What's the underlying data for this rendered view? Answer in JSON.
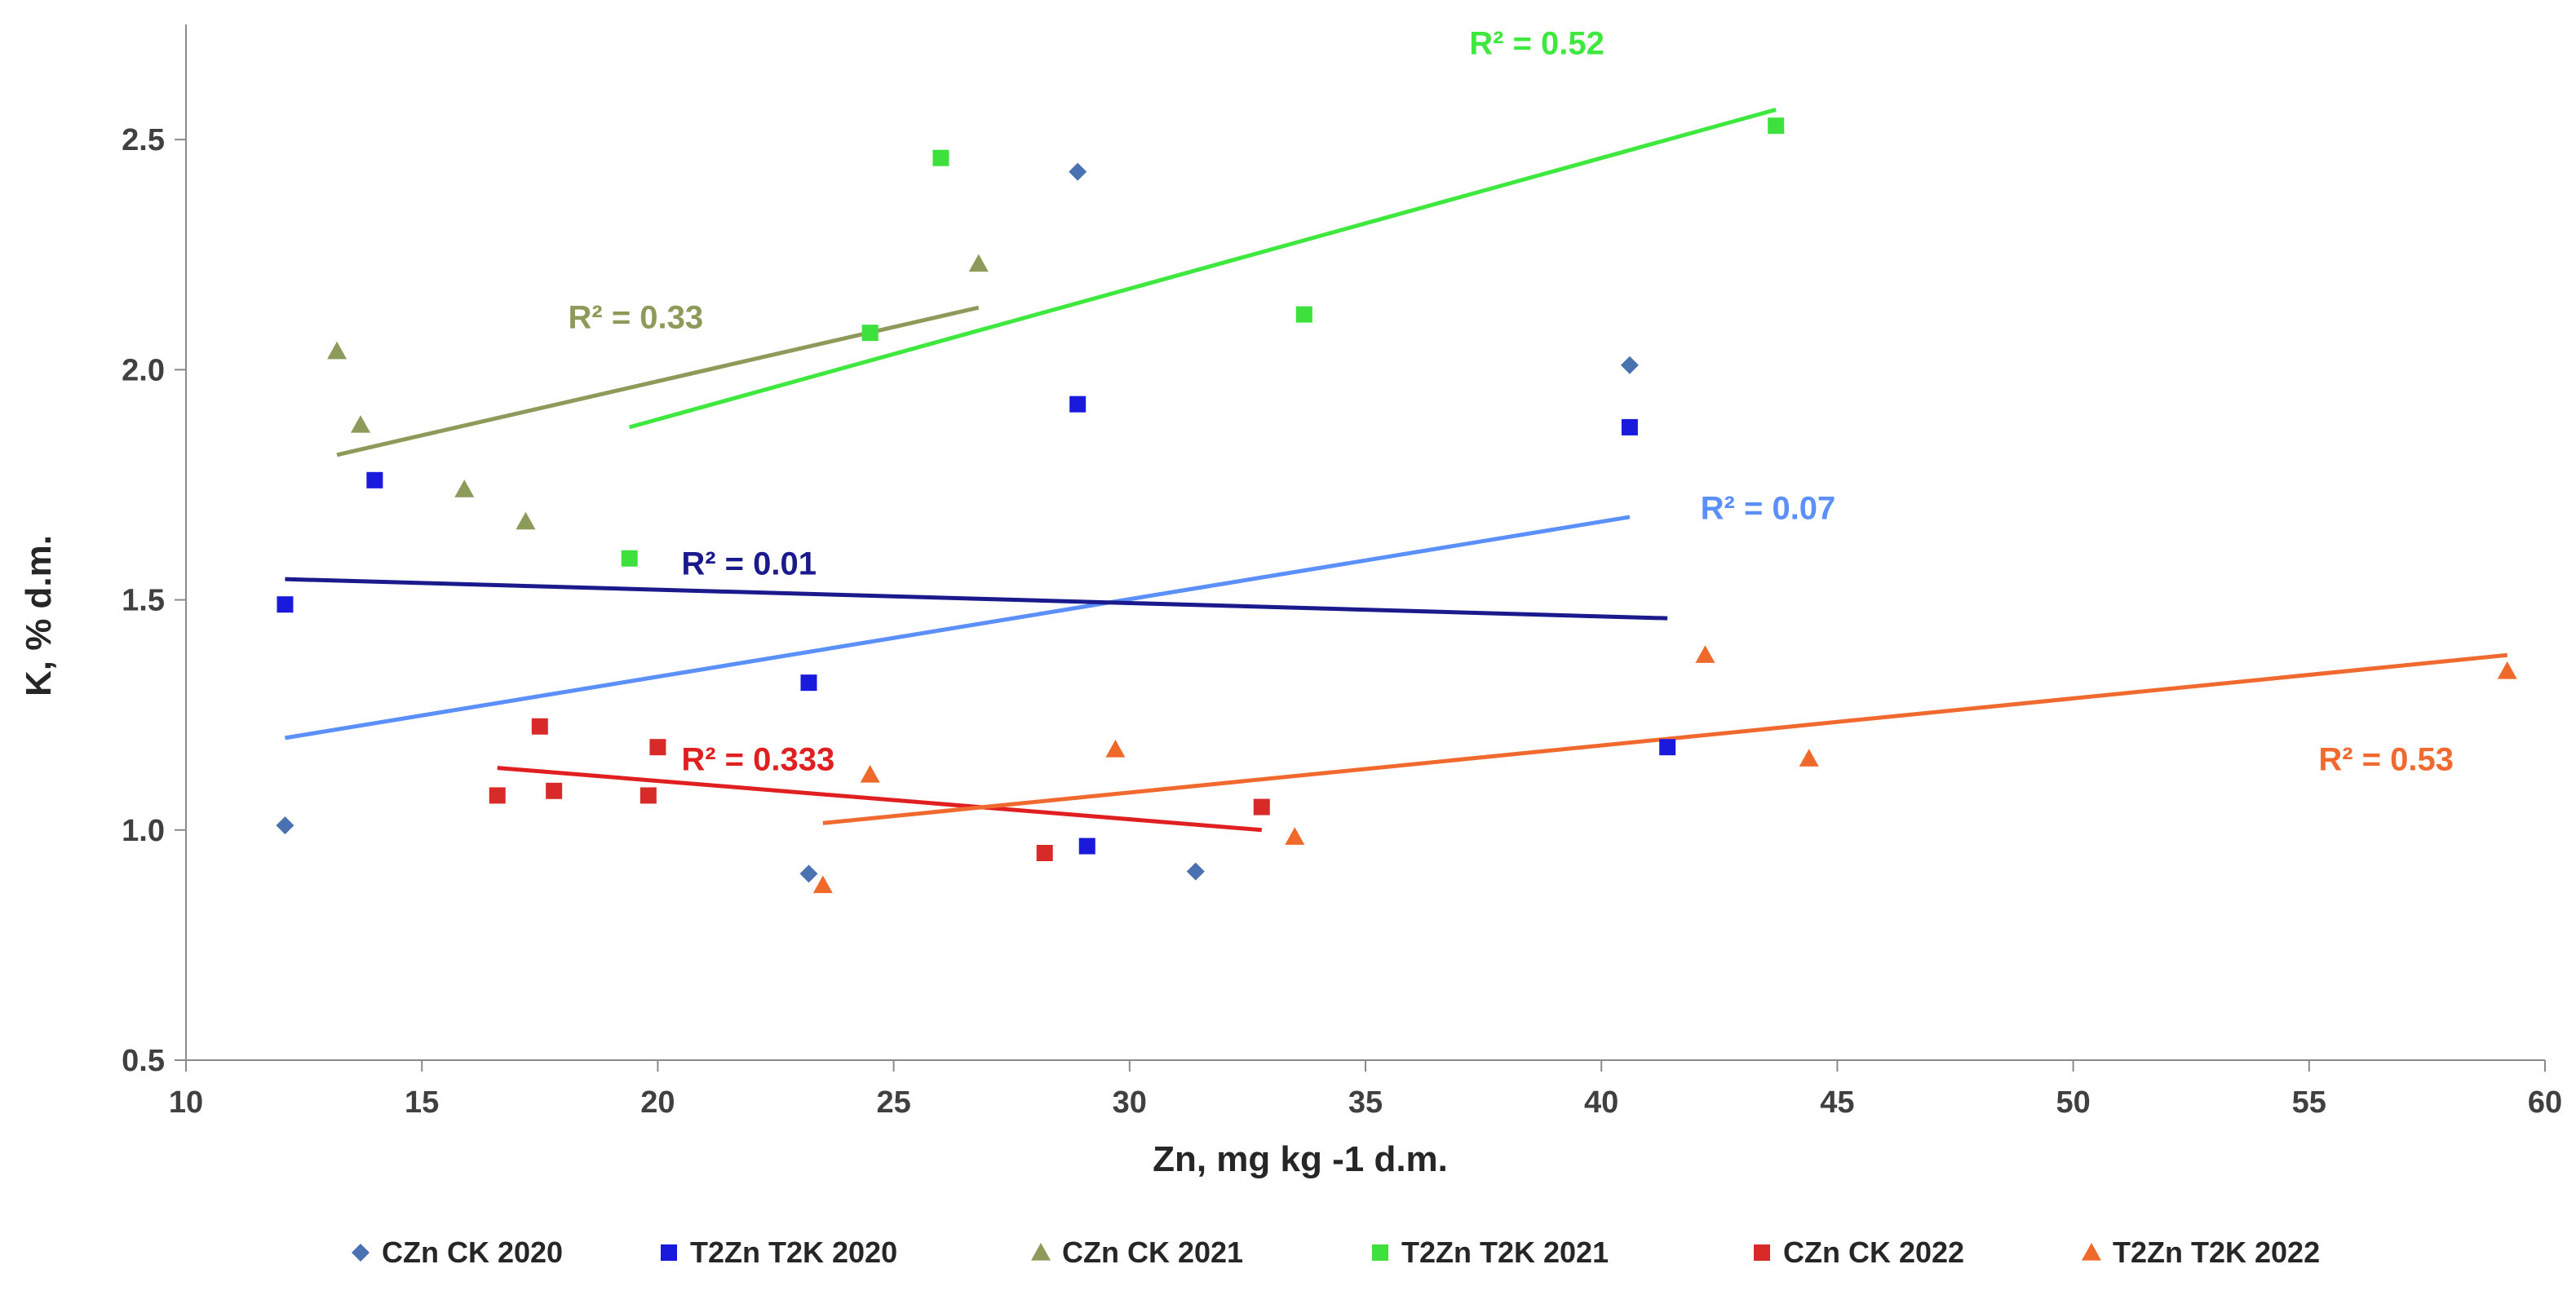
{
  "chart_data": {
    "type": "scatter",
    "title": "",
    "xlabel": "Zn, mg kg -1 d.m.",
    "ylabel": "K, % d.m.",
    "xlim": [
      10,
      60
    ],
    "ylim": [
      0.5,
      2.75
    ],
    "xticks": [
      "10",
      "15",
      "20",
      "25",
      "30",
      "35",
      "40",
      "45",
      "50",
      "55",
      "60"
    ],
    "yticks": [
      "0.5",
      "1.0",
      "1.5",
      "2.0",
      "2.5"
    ],
    "grid": false,
    "legend_position": "bottom",
    "series": [
      {
        "name": "CZn CK 2020",
        "marker": "diamond",
        "color": "#4a72b0",
        "points": [
          [
            12.1,
            1.01
          ],
          [
            23.2,
            0.905
          ],
          [
            28.9,
            2.43
          ],
          [
            31.4,
            0.91
          ],
          [
            40.6,
            2.01
          ]
        ],
        "trend": {
          "x": [
            12.1,
            40.6
          ],
          "y": [
            1.2,
            1.68
          ],
          "color": "#5b8ff9",
          "r2_label": "R² = 0.07"
        }
      },
      {
        "name": "T2Zn  T2K 2020",
        "marker": "square",
        "color": "#1a1adc",
        "points": [
          [
            12.1,
            1.49
          ],
          [
            14.0,
            1.76
          ],
          [
            23.2,
            1.32
          ],
          [
            28.9,
            1.925
          ],
          [
            29.1,
            0.965
          ],
          [
            40.6,
            1.875
          ],
          [
            41.4,
            1.18
          ]
        ],
        "trend": {
          "x": [
            12.1,
            41.4
          ],
          "y": [
            1.545,
            1.46
          ],
          "color": "#1a1a8c",
          "r2_label": "R² = 0.01"
        }
      },
      {
        "name": "CZn CK 2021",
        "marker": "triangle",
        "color": "#8c9a5a",
        "points": [
          [
            13.2,
            2.04
          ],
          [
            13.7,
            1.88
          ],
          [
            15.9,
            1.74
          ],
          [
            17.2,
            1.67
          ],
          [
            26.8,
            2.23
          ]
        ],
        "trend": {
          "x": [
            13.2,
            26.8
          ],
          "y": [
            1.815,
            2.135
          ],
          "color": "#8c9a5a",
          "r2_label": "R² = 0.33"
        }
      },
      {
        "name": "T2Zn  T2K 2021",
        "marker": "square",
        "color": "#3de03d",
        "points": [
          [
            19.4,
            1.59
          ],
          [
            24.5,
            2.08
          ],
          [
            26.0,
            2.46
          ],
          [
            33.7,
            2.12
          ],
          [
            43.7,
            2.53
          ]
        ],
        "trend": {
          "x": [
            19.4,
            43.7
          ],
          "y": [
            1.875,
            2.565
          ],
          "color": "#3ee83e",
          "r2_label": "R² = 0.52"
        }
      },
      {
        "name": "CZn CK 2022",
        "marker": "square",
        "color": "#d92a2a",
        "points": [
          [
            16.6,
            1.075
          ],
          [
            17.5,
            1.225
          ],
          [
            17.8,
            1.085
          ],
          [
            19.8,
            1.075
          ],
          [
            20.0,
            1.18
          ],
          [
            28.2,
            0.95
          ],
          [
            32.8,
            1.05
          ]
        ],
        "trend": {
          "x": [
            16.6,
            32.8
          ],
          "y": [
            1.135,
            1.0
          ],
          "color": "#e02020",
          "r2_label": "R² = 0.333"
        }
      },
      {
        "name": "T2Zn  T2K 2022",
        "marker": "triangle",
        "color": "#ef6a2a",
        "points": [
          [
            23.5,
            0.88
          ],
          [
            24.5,
            1.12
          ],
          [
            29.7,
            1.175
          ],
          [
            33.5,
            0.985
          ],
          [
            42.2,
            1.38
          ],
          [
            44.4,
            1.155
          ],
          [
            59.2,
            1.345
          ]
        ],
        "trend": {
          "x": [
            23.5,
            59.2
          ],
          "y": [
            1.015,
            1.38
          ],
          "color": "#f06a30",
          "r2_label": "R² = 0.53"
        }
      }
    ]
  }
}
